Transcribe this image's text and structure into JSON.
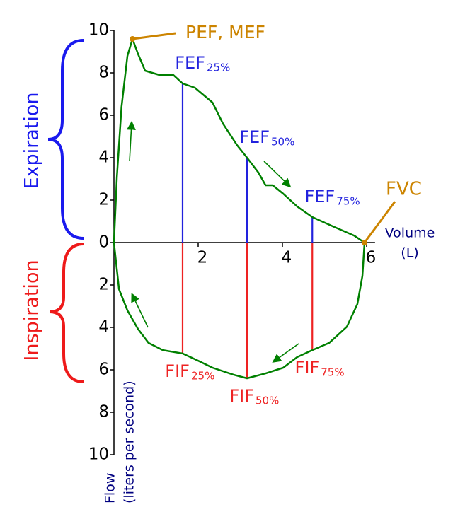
{
  "chart_data": {
    "type": "line",
    "xlabel": [
      "Volume",
      "(L)"
    ],
    "ylabel": [
      "Flow",
      "(liters per second)"
    ],
    "xlim": [
      0,
      6.2
    ],
    "xticks": [
      2,
      4,
      6
    ],
    "ylim": [
      -10,
      10
    ],
    "yticks": [
      10,
      8,
      6,
      4,
      2,
      0,
      {
        "value": -2,
        "label": "2"
      },
      {
        "value": -4,
        "label": "4"
      },
      {
        "value": -6,
        "label": "6"
      },
      {
        "value": -8,
        "label": "8"
      },
      {
        "value": -10,
        "label": "10"
      }
    ],
    "line_color": "#008000",
    "series": [
      {
        "name": "Expiration",
        "color": "#1a1aee",
        "x": [
          0,
          0.07,
          0.18,
          0.32,
          0.44,
          0.57,
          0.74,
          1.08,
          1.41,
          1.63,
          1.92,
          2.34,
          2.59,
          2.92,
          3.16,
          3.43,
          3.6,
          3.77,
          4.02,
          4.35,
          4.71,
          5.19,
          5.7,
          5.95
        ],
        "values": [
          0,
          3.1,
          6.4,
          8.8,
          9.6,
          8.9,
          8.1,
          7.9,
          7.9,
          7.5,
          7.3,
          6.6,
          5.6,
          4.6,
          4.0,
          3.3,
          2.7,
          2.7,
          2.3,
          1.7,
          1.2,
          0.77,
          0.33,
          0
        ]
      },
      {
        "name": "Inspiration",
        "color": "#ee1a1a",
        "x": [
          0,
          0.12,
          0.32,
          0.57,
          0.82,
          1.16,
          1.63,
          2.0,
          2.34,
          2.84,
          3.16,
          3.6,
          4.02,
          4.35,
          4.71,
          5.11,
          5.53,
          5.78,
          5.9,
          5.95
        ],
        "values": [
          0,
          -2.2,
          -3.2,
          -4.07,
          -4.73,
          -5.07,
          -5.23,
          -5.57,
          -5.9,
          -6.23,
          -6.4,
          -6.17,
          -5.9,
          -5.4,
          -5.07,
          -4.73,
          -3.97,
          -2.9,
          -1.57,
          0
        ]
      }
    ],
    "annotations": [
      {
        "text": "FEF",
        "sub": "25%",
        "x": 1.63,
        "y": 7.5,
        "color": "#2222dd"
      },
      {
        "text": "FEF",
        "sub": "50%",
        "x": 3.16,
        "y": 4.0,
        "color": "#2222dd"
      },
      {
        "text": "FEF",
        "sub": "75%",
        "x": 4.71,
        "y": 1.2,
        "color": "#2222dd"
      },
      {
        "text": "FIF",
        "sub": "25%",
        "x": 1.63,
        "y": -5.23,
        "color": "#ee2222"
      },
      {
        "text": "FIF",
        "sub": "50%",
        "x": 3.16,
        "y": -6.4,
        "color": "#ee2222"
      },
      {
        "text": "FIF",
        "sub": "75%",
        "x": 4.71,
        "y": -5.07,
        "color": "#ee2222"
      }
    ],
    "peak": {
      "text": "PEF, MEF",
      "x": 0.44,
      "y": 9.6,
      "color": "#cc8400"
    },
    "end": {
      "text": "FVC",
      "x": 5.95,
      "y": 0,
      "color": "#cc8400"
    }
  }
}
